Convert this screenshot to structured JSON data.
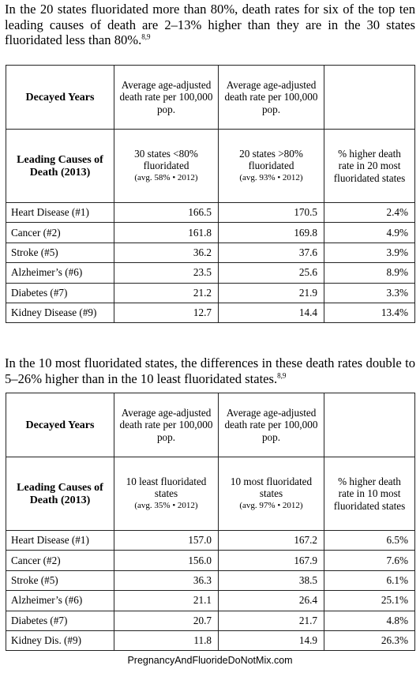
{
  "para1": {
    "text": "In the 20 states fluoridated more than 80%, death rates for six of the top ten leading causes of death are 2–13% higher than they are in the 30 states fluoridated less than 80%.",
    "ref": "8,9"
  },
  "table1": {
    "top_label": "Decayed Years",
    "top_col1": "Average age-adjusted death rate per 100,000 pop.",
    "top_col2": "Average age-adjusted death rate per 100,000 pop.",
    "mid_label": "Leading Causes of Death (2013)",
    "col1_title": "30 states <80% fluoridated",
    "col1_sub": "(avg. 58% • 2012)",
    "col2_title": "20 states >80% fluoridated",
    "col2_sub": "(avg. 93% • 2012)",
    "col3_title": "% higher death rate in 20 most fluoridated states",
    "rows": [
      {
        "cause": "Heart Disease (#1)",
        "a": "166.5",
        "b": "170.5",
        "pct": "2.4%"
      },
      {
        "cause": "Cancer (#2)",
        "a": "161.8",
        "b": "169.8",
        "pct": "4.9%"
      },
      {
        "cause": "Stroke (#5)",
        "a": "36.2",
        "b": "37.6",
        "pct": "3.9%"
      },
      {
        "cause": "Alzheimer’s (#6)",
        "a": "23.5",
        "b": "25.6",
        "pct": "8.9%"
      },
      {
        "cause": "Diabetes (#7)",
        "a": "21.2",
        "b": "21.9",
        "pct": "3.3%"
      },
      {
        "cause": "Kidney Disease (#9)",
        "a": "12.7",
        "b": "14.4",
        "pct": "13.4%"
      }
    ]
  },
  "para2": {
    "text": "In the 10 most fluoridated states, the differences in these death rates double to 5–26% higher than in the 10 least fluoridated states.",
    "ref": "8,9"
  },
  "table2": {
    "top_label": "Decayed Years",
    "top_col1": "Average age-adjusted death rate per 100,000 pop.",
    "top_col2": "Average age-adjusted death rate per 100,000 pop.",
    "mid_label": "Leading Causes of Death (2013)",
    "col1_title": "10 least fluoridated states",
    "col1_sub": "(avg. 35% • 2012)",
    "col2_title": "10 most fluoridated states",
    "col2_sub": "(avg. 97% • 2012)",
    "col3_title": "% higher death rate in 10 most fluoridated states",
    "rows": [
      {
        "cause": "Heart Disease (#1)",
        "a": "157.0",
        "b": "167.2",
        "pct": "6.5%"
      },
      {
        "cause": "Cancer (#2)",
        "a": "156.0",
        "b": "167.9",
        "pct": "7.6%"
      },
      {
        "cause": "Stroke (#5)",
        "a": "36.3",
        "b": "38.5",
        "pct": "6.1%"
      },
      {
        "cause": "Alzheimer’s (#6)",
        "a": "21.1",
        "b": "26.4",
        "pct": "25.1%"
      },
      {
        "cause": "Diabetes (#7)",
        "a": "20.7",
        "b": "21.7",
        "pct": "4.8%"
      },
      {
        "cause": "Kidney Dis. (#9)",
        "a": "11.8",
        "b": "14.9",
        "pct": "26.3%"
      }
    ]
  },
  "footer": "PregnancyAndFluorideDoNotMix.com"
}
